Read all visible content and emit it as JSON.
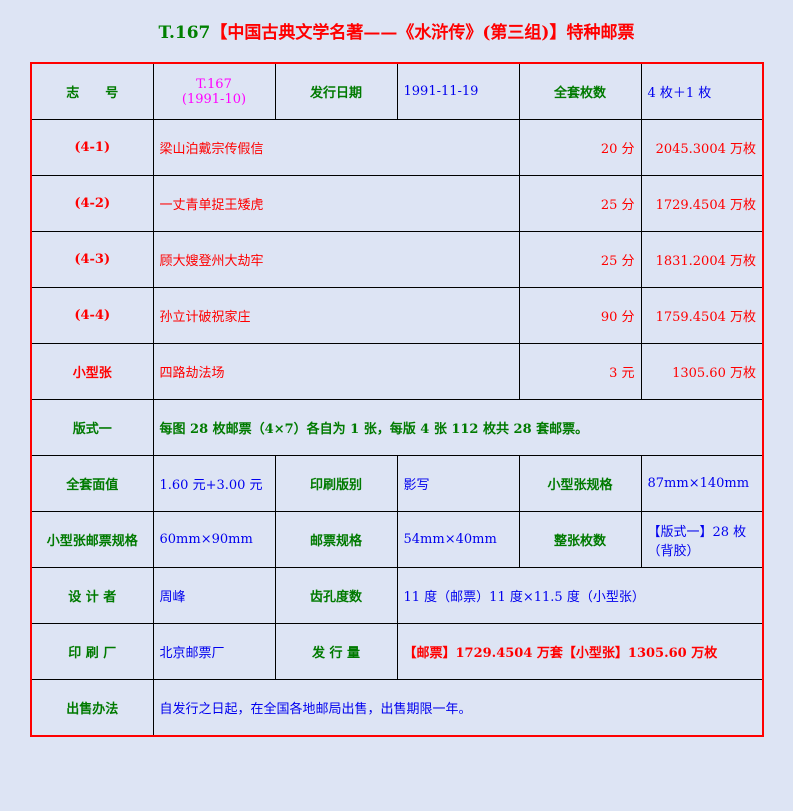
{
  "title": {
    "code": "T.167",
    "name": "【中国古典文学名著——《水浒传》(第三组)】特种邮票"
  },
  "header": {
    "zhihao_label": "志　　号",
    "zhihao_value": "T.167",
    "zhihao_sub": "(1991-10)",
    "date_label": "发行日期",
    "date_value": "1991-11-19",
    "count_label": "全套枚数",
    "count_value": "4 枚＋1 枚"
  },
  "stamps": [
    {
      "no": "(4-1)",
      "name": "梁山泊戴宗传假信",
      "value": "20 分",
      "qty": "2045.3004 万枚"
    },
    {
      "no": "(4-2)",
      "name": "一丈青单捉王矮虎",
      "value": "25 分",
      "qty": "1729.4504 万枚"
    },
    {
      "no": "(4-3)",
      "name": "顾大嫂登州大劫牢",
      "value": "25 分",
      "qty": "1831.2004 万枚"
    },
    {
      "no": "(4-4)",
      "name": "孙立计破祝家庄",
      "value": "90 分",
      "qty": "1759.4504 万枚"
    },
    {
      "no": "小型张",
      "name": "四路劫法场",
      "value": "3 元",
      "qty": "1305.60 万枚"
    }
  ],
  "format": {
    "label": "版式一",
    "value": "每图 28 枚邮票（4×7）各自为 1 张，每版 4 张 112 枚共 28 套邮票。"
  },
  "specs": {
    "face_label": "全套面值",
    "face_value": "1.60 元+3.00 元",
    "print_label": "印刷版别",
    "print_value": "影写",
    "ms_size_label": "小型张规格",
    "ms_size_value": "87mm×140mm",
    "ms_stamp_label": "小型张邮票规格",
    "ms_stamp_value": "60mm×90mm",
    "stamp_size_label": "邮票规格",
    "stamp_size_value": "54mm×40mm",
    "sheet_label": "整张枚数",
    "sheet_value": "【版式一】28 枚（背胶）",
    "designer_label": "设 计 者",
    "designer_value": "周峰",
    "perf_label": "齿孔度数",
    "perf_value": "11 度（邮票）11 度×11.5 度（小型张）",
    "printer_label": "印 刷 厂",
    "printer_value": "北京邮票厂",
    "issue_label": "发 行 量",
    "issue_value": "【邮票】1729.4504 万套【小型张】1305.60 万枚",
    "sale_label": "出售办法",
    "sale_value": "自发行之日起，在全国各地邮局出售，出售期限一年。"
  }
}
